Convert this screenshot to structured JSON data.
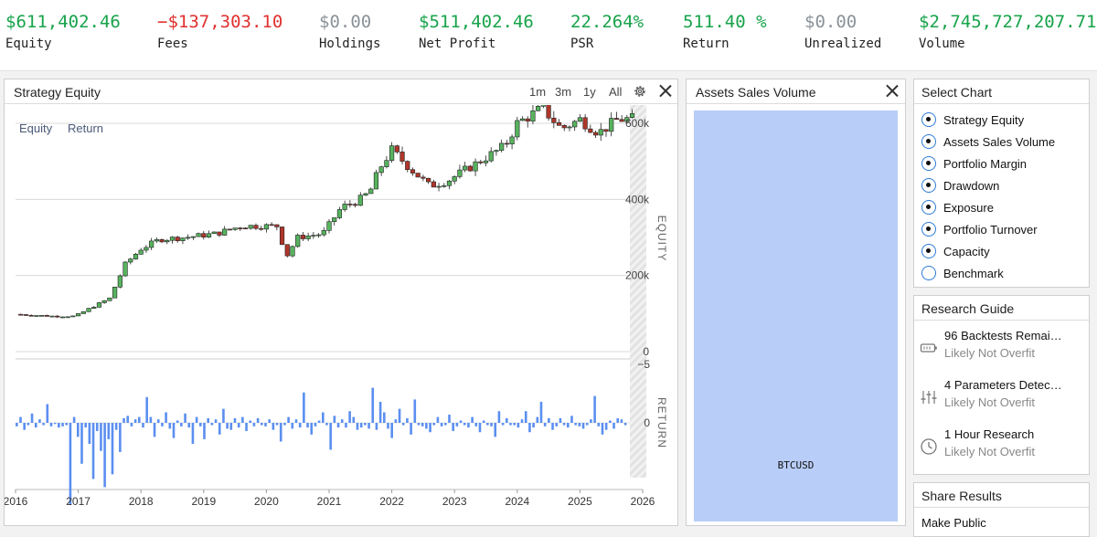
{
  "stats": [
    {
      "value": "$611,402.46",
      "label": "Equity",
      "color": "#17a34a"
    },
    {
      "value": "−$137,303.10",
      "label": "Fees",
      "color": "#e0302f"
    },
    {
      "value": "$0.00",
      "label": "Holdings",
      "color": "#8a9299"
    },
    {
      "value": "$511,402.46",
      "label": "Net Profit",
      "color": "#17a34a"
    },
    {
      "value": "22.264%",
      "label": "PSR",
      "color": "#17a34a"
    },
    {
      "value": "511.40 %",
      "label": "Return",
      "color": "#17a34a"
    },
    {
      "value": "$0.00",
      "label": "Unrealized",
      "color": "#8a9299"
    },
    {
      "value": "$2,745,727,207.71",
      "label": "Volume",
      "color": "#17a34a"
    }
  ],
  "strategy_panel": {
    "title": "Strategy Equity",
    "ranges": [
      "1m",
      "3m",
      "1y",
      "All"
    ],
    "legend": [
      "Equity",
      "Return"
    ]
  },
  "assets_panel": {
    "title": "Assets Sales Volume",
    "asset_label": "BTCUSD",
    "color": "#b8cdf8"
  },
  "select_chart": {
    "title": "Select Chart",
    "options": [
      {
        "label": "Strategy Equity",
        "selected": true
      },
      {
        "label": "Assets Sales Volume",
        "selected": true
      },
      {
        "label": "Portfolio Margin",
        "selected": true
      },
      {
        "label": "Drawdown",
        "selected": true
      },
      {
        "label": "Exposure",
        "selected": true
      },
      {
        "label": "Portfolio Turnover",
        "selected": true
      },
      {
        "label": "Capacity",
        "selected": true
      },
      {
        "label": "Benchmark",
        "selected": false
      }
    ]
  },
  "research_guide": {
    "title": "Research Guide",
    "items": [
      {
        "title": "96 Backtests Remai…",
        "subtitle": "Likely Not Overfit",
        "icon": "battery-icon"
      },
      {
        "title": "4 Parameters Detec…",
        "subtitle": "Likely Not Overfit",
        "icon": "sliders-icon"
      },
      {
        "title": "1 Hour Research",
        "subtitle": "Likely Not Overfit",
        "icon": "clock-icon"
      }
    ]
  },
  "share_results": {
    "title": "Share Results",
    "item_label": "Make Public"
  },
  "chart_data": {
    "type": "candlestick",
    "x_tick_labels": [
      "2016",
      "2017",
      "2018",
      "2019",
      "2020",
      "2021",
      "2022",
      "2023",
      "2024",
      "2025",
      "2026"
    ],
    "x_range": [
      2016.0,
      2026.0
    ],
    "equity": {
      "axis_title": "EQUITY",
      "y_ticks": [
        0,
        200000,
        400000,
        600000
      ],
      "y_tick_labels": [
        "0",
        "200k",
        "400k",
        "600k"
      ],
      "ylim": [
        0,
        600000
      ],
      "up_color": "#57b35e",
      "down_color": "#b0362a",
      "anchor_points": [
        [
          2016.0,
          98000
        ],
        [
          2016.6,
          93000
        ],
        [
          2016.95,
          93000
        ],
        [
          2017.2,
          115000
        ],
        [
          2017.5,
          140000
        ],
        [
          2017.75,
          230000
        ],
        [
          2018.0,
          270000
        ],
        [
          2018.3,
          295000
        ],
        [
          2018.7,
          300000
        ],
        [
          2019.2,
          310000
        ],
        [
          2019.6,
          330000
        ],
        [
          2020.2,
          330000
        ],
        [
          2020.3,
          245000
        ],
        [
          2020.5,
          300000
        ],
        [
          2020.9,
          310000
        ],
        [
          2021.2,
          380000
        ],
        [
          2021.45,
          395000
        ],
        [
          2021.65,
          420000
        ],
        [
          2021.8,
          480000
        ],
        [
          2022.0,
          530000
        ],
        [
          2022.3,
          480000
        ],
        [
          2022.6,
          435000
        ],
        [
          2022.9,
          450000
        ],
        [
          2023.3,
          490000
        ],
        [
          2023.8,
          540000
        ],
        [
          2024.0,
          600000
        ],
        [
          2024.4,
          640000
        ],
        [
          2024.7,
          585000
        ],
        [
          2025.0,
          610000
        ],
        [
          2025.3,
          575000
        ],
        [
          2025.6,
          610000
        ],
        [
          2025.85,
          612000
        ]
      ]
    },
    "returns": {
      "axis_title": "RETURN",
      "y_ticks": [
        0,
        -5
      ],
      "y_tick_labels": [
        "0",
        "−5"
      ],
      "ylim": [
        -5.5,
        7.5
      ],
      "color": "#5b8ff0",
      "values": [
        0.3,
        -0.5,
        0.6,
        0.2,
        -0.8,
        0.4,
        -0.3,
        0.2,
        -1.6,
        0.3,
        0.1,
        0.4,
        0.3,
        0.2,
        7.0,
        -0.5,
        1.2,
        3.5,
        0.4,
        1.8,
        4.8,
        0.7,
        2.4,
        5.5,
        1.4,
        4.4,
        0.6,
        2.5,
        -0.4,
        -0.6,
        0.3,
        -0.3,
        -0.5,
        0.4,
        -2.2,
        -0.5,
        1.2,
        -0.3,
        0.3,
        -0.9,
        0.5,
        1.3,
        -0.2,
        0.3,
        -0.8,
        0.4,
        1.8,
        -0.5,
        0.3,
        1.4,
        -0.4,
        0.2,
        -0.3,
        1.0,
        -1.2,
        0.5,
        0.6,
        -0.4,
        0.4,
        -0.5,
        0.7,
        -0.2,
        0.3,
        -0.4,
        0.2,
        0.3,
        -0.3,
        0.6,
        0.2,
        1.6,
        0.2,
        -0.5,
        0.5,
        -0.3,
        0.4,
        -2.6,
        0.4,
        1.0,
        0.3,
        -0.2,
        -0.9,
        0.2,
        2.3,
        -0.6,
        0.4,
        -0.3,
        0.4,
        -1.0,
        -0.5,
        0.6,
        0.4,
        0.2,
        0.5,
        -3.0,
        0.6,
        -1.8,
        -0.9,
        0.5,
        1.3,
        -0.3,
        -1.2,
        0.2,
        -0.4,
        1.0,
        -2.0,
        0.2,
        0.3,
        0.5,
        0.8,
        0.2,
        -0.5,
        0.3,
        0.2,
        -0.7,
        0.7,
        0.3,
        -0.2,
        0.2,
        0.4,
        -0.5,
        0.3,
        0.8,
        -0.2,
        0.2,
        0.3,
        1.2,
        -1.0,
        0.2,
        -0.4,
        0.2,
        0.2,
        0.4,
        -0.3,
        -1.0,
        0.8,
        0.4,
        -0.5,
        -1.8,
        0.3,
        -0.4,
        0.6,
        0.3,
        -0.4,
        0.2,
        0.4,
        -0.6,
        0.2,
        0.3,
        0.5,
        0.2,
        -0.3,
        -2.3,
        0.3,
        1.0,
        0.6,
        -0.2,
        0.5,
        -0.4,
        -0.3,
        0.2
      ]
    }
  }
}
